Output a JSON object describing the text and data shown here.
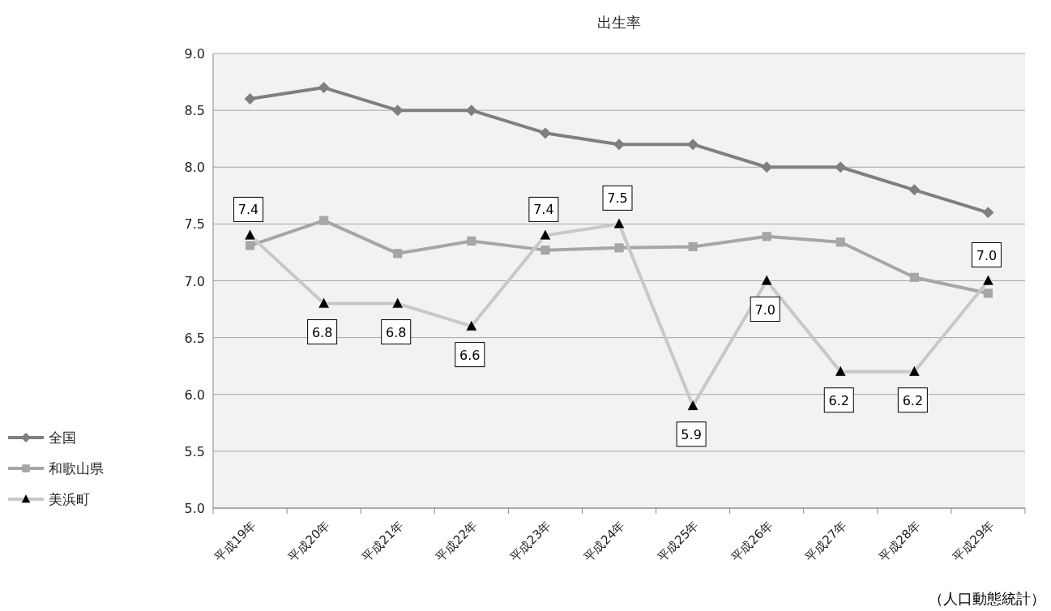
{
  "chart_data": {
    "type": "line",
    "title": "出生率",
    "categories": [
      "平成19年",
      "平成20年",
      "平成21年",
      "平成22年",
      "平成23年",
      "平成24年",
      "平成25年",
      "平成26年",
      "平成27年",
      "平成28年",
      "平成29年"
    ],
    "ylim": [
      5.0,
      9.0
    ],
    "yticks": [
      {
        "value": 5,
        "label": "5.0"
      },
      {
        "value": 5.5,
        "label": "5.5"
      },
      {
        "value": 6,
        "label": "6.0"
      },
      {
        "value": 6.5,
        "label": "6.5"
      },
      {
        "value": 7,
        "label": "7.0"
      },
      {
        "value": 7.5,
        "label": "7.5"
      },
      {
        "value": 8,
        "label": "8.0"
      },
      {
        "value": 8.5,
        "label": "8.5"
      },
      {
        "value": 9,
        "label": "9.0"
      }
    ],
    "grid": "y",
    "legend": "left",
    "line_style": "solid",
    "series": [
      {
        "name": "全国",
        "color": "#7f7f7f",
        "marker": "diamond",
        "values": [
          8.6,
          8.7,
          8.5,
          8.5,
          8.3,
          8.2,
          8.2,
          8.0,
          8.0,
          7.8,
          7.6
        ]
      },
      {
        "name": "和歌山県",
        "color": "#a6a6a6",
        "marker": "square",
        "values": [
          7.31,
          7.53,
          7.24,
          7.35,
          7.27,
          7.29,
          7.3,
          7.39,
          7.34,
          7.03,
          6.89
        ]
      },
      {
        "name": "美浜町",
        "color": "#c8c8c8",
        "marker": "triangle",
        "values": [
          7.4,
          6.8,
          6.8,
          6.6,
          7.4,
          7.5,
          5.9,
          7.0,
          6.2,
          6.2,
          7.0
        ],
        "value_labels": [
          "7.4",
          "6.8",
          "6.8",
          "6.6",
          "7.4",
          "7.5",
          "5.9",
          "7.0",
          "6.2",
          "6.2",
          "7.0"
        ]
      }
    ],
    "annotations": [
      "（人口動態統計）"
    ]
  }
}
